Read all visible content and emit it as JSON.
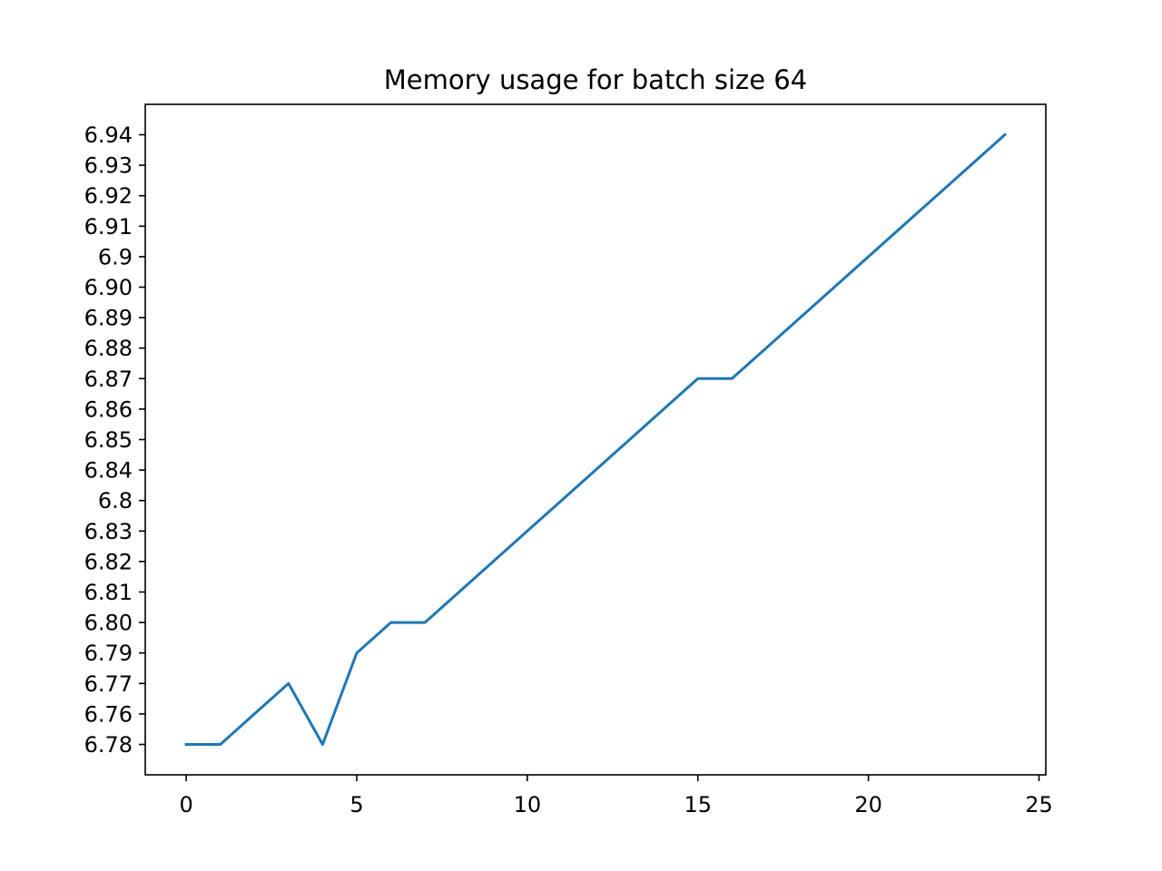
{
  "chart_data": {
    "type": "line",
    "title": "Memory usage for batch size 64",
    "xlabel": "",
    "ylabel": "",
    "grid": false,
    "x_ticks": [
      "0",
      "5",
      "10",
      "15",
      "20",
      "25"
    ],
    "x_tick_values": [
      0,
      5,
      10,
      15,
      20,
      25
    ],
    "y_axis_kind": "categorical",
    "y_categories": [
      "6.78",
      "6.76",
      "6.77",
      "6.79",
      "6.80",
      "6.81",
      "6.82",
      "6.83",
      "6.8",
      "6.84",
      "6.85",
      "6.86",
      "6.87",
      "6.88",
      "6.89",
      "6.90",
      "6.9",
      "6.91",
      "6.92",
      "6.93",
      "6.94"
    ],
    "xlim": [
      -1.2,
      25.2
    ],
    "series": [
      {
        "color": "#1f77b4",
        "x": [
          0,
          1,
          2,
          3,
          4,
          5,
          6,
          7,
          8,
          9,
          10,
          11,
          12,
          13,
          14,
          15,
          16,
          17,
          18,
          19,
          20,
          21,
          22,
          23,
          24
        ],
        "y": [
          "6.78",
          "6.78",
          "6.76",
          "6.77",
          "6.78",
          "6.79",
          "6.80",
          "6.80",
          "6.81",
          "6.82",
          "6.83",
          "6.8",
          "6.84",
          "6.85",
          "6.86",
          "6.87",
          "6.87",
          "6.88",
          "6.89",
          "6.90",
          "6.9",
          "6.91",
          "6.92",
          "6.93",
          "6.94"
        ]
      }
    ]
  }
}
